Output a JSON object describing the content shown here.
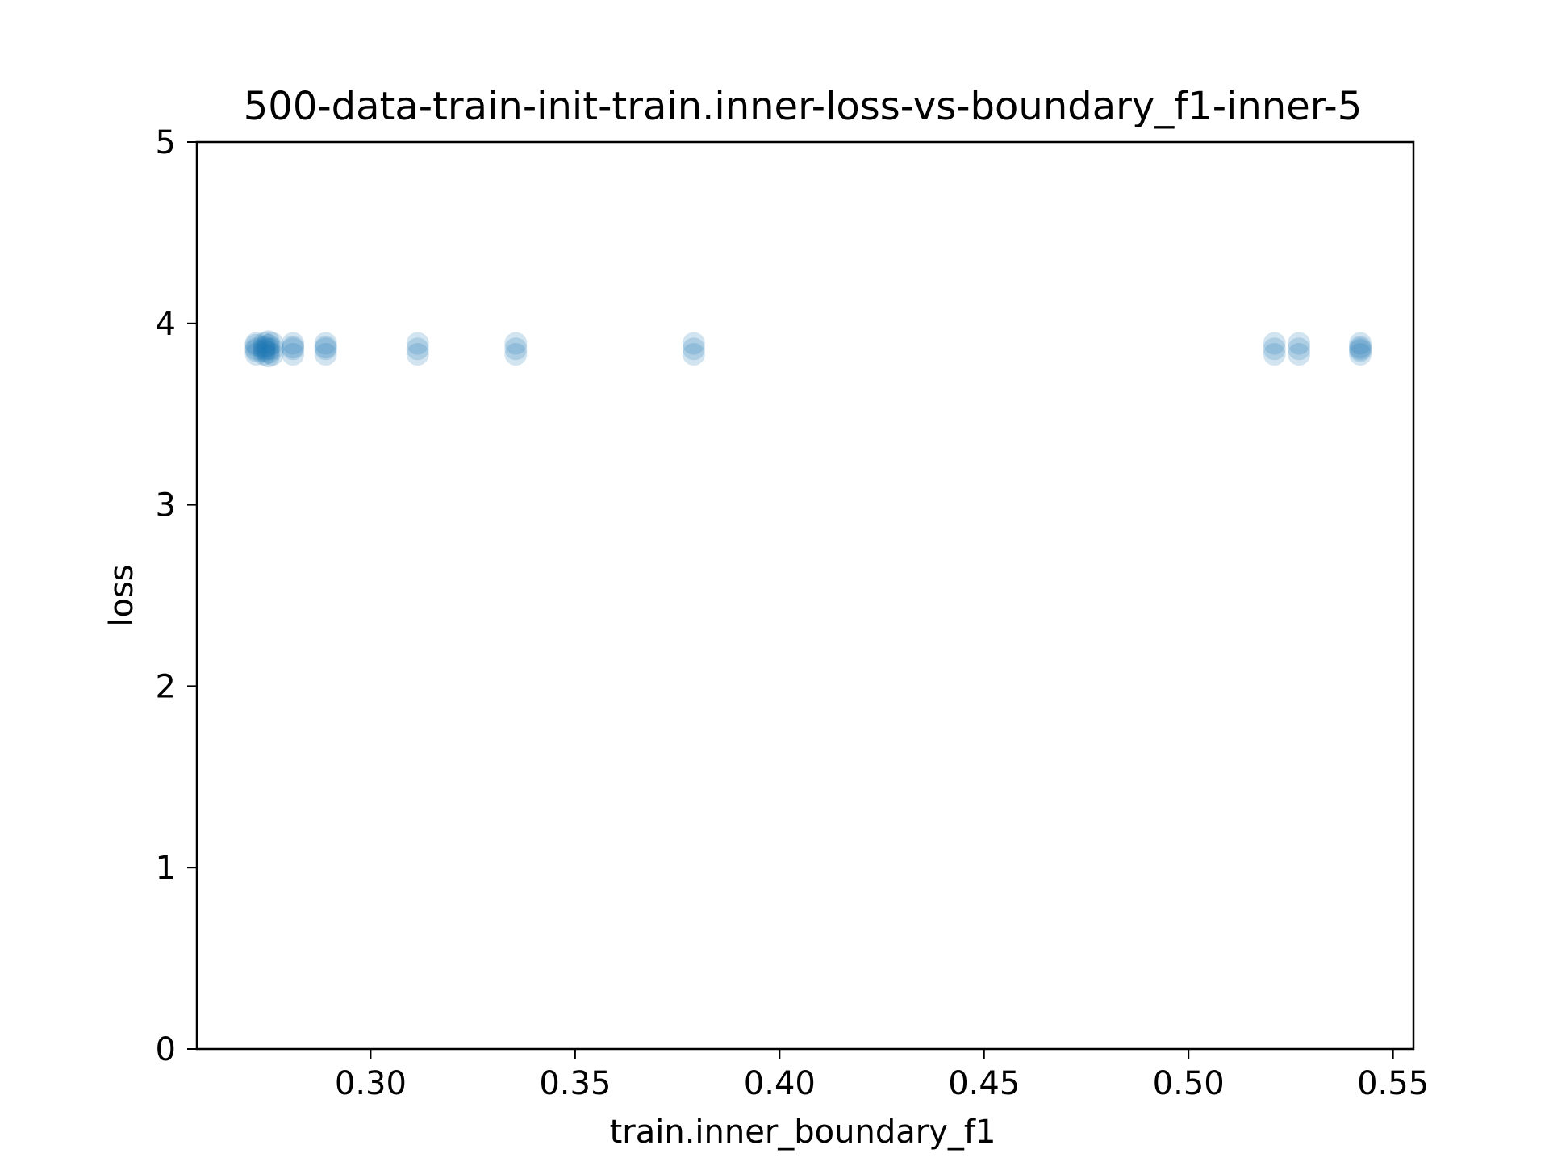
{
  "chart_data": {
    "type": "scatter",
    "title": "500-data-train-init-train.inner-loss-vs-boundary_f1-inner-5",
    "xlabel": "train.inner_boundary_f1",
    "ylabel": "loss",
    "xlim": [
      0.2575,
      0.555
    ],
    "ylim": [
      0,
      5
    ],
    "xticks": [
      0.3,
      0.35,
      0.4,
      0.45,
      0.5,
      0.55
    ],
    "xtick_labels": [
      "0.30",
      "0.35",
      "0.40",
      "0.45",
      "0.50",
      "0.55"
    ],
    "yticks": [
      0,
      1,
      2,
      3,
      4,
      5
    ],
    "ytick_labels": [
      "0",
      "1",
      "2",
      "3",
      "4",
      "5"
    ],
    "grid": false,
    "point_color": "#1f77b4",
    "point_alpha": 0.2,
    "series": [
      {
        "points": [
          {
            "x": 0.272,
            "y": 3.83
          },
          {
            "x": 0.272,
            "y": 3.86
          },
          {
            "x": 0.272,
            "y": 3.89
          },
          {
            "x": 0.272,
            "y": 3.85
          },
          {
            "x": 0.272,
            "y": 3.88
          },
          {
            "x": 0.274,
            "y": 3.83
          },
          {
            "x": 0.274,
            "y": 3.86
          },
          {
            "x": 0.274,
            "y": 3.89
          },
          {
            "x": 0.274,
            "y": 3.85
          },
          {
            "x": 0.274,
            "y": 3.87
          },
          {
            "x": 0.275,
            "y": 3.82
          },
          {
            "x": 0.275,
            "y": 3.84
          },
          {
            "x": 0.275,
            "y": 3.86
          },
          {
            "x": 0.275,
            "y": 3.88
          },
          {
            "x": 0.275,
            "y": 3.9
          },
          {
            "x": 0.276,
            "y": 3.83
          },
          {
            "x": 0.276,
            "y": 3.86
          },
          {
            "x": 0.276,
            "y": 3.89
          },
          {
            "x": 0.281,
            "y": 3.83
          },
          {
            "x": 0.281,
            "y": 3.86
          },
          {
            "x": 0.281,
            "y": 3.89
          },
          {
            "x": 0.281,
            "y": 3.87
          },
          {
            "x": 0.289,
            "y": 3.83
          },
          {
            "x": 0.289,
            "y": 3.86
          },
          {
            "x": 0.289,
            "y": 3.89
          },
          {
            "x": 0.289,
            "y": 3.87
          },
          {
            "x": 0.3115,
            "y": 3.83
          },
          {
            "x": 0.3115,
            "y": 3.86
          },
          {
            "x": 0.3115,
            "y": 3.89
          },
          {
            "x": 0.3355,
            "y": 3.83
          },
          {
            "x": 0.3355,
            "y": 3.86
          },
          {
            "x": 0.3355,
            "y": 3.89
          },
          {
            "x": 0.379,
            "y": 3.83
          },
          {
            "x": 0.379,
            "y": 3.86
          },
          {
            "x": 0.379,
            "y": 3.89
          },
          {
            "x": 0.521,
            "y": 3.83
          },
          {
            "x": 0.521,
            "y": 3.86
          },
          {
            "x": 0.521,
            "y": 3.89
          },
          {
            "x": 0.527,
            "y": 3.83
          },
          {
            "x": 0.527,
            "y": 3.86
          },
          {
            "x": 0.527,
            "y": 3.89
          },
          {
            "x": 0.542,
            "y": 3.83
          },
          {
            "x": 0.542,
            "y": 3.86
          },
          {
            "x": 0.542,
            "y": 3.89
          },
          {
            "x": 0.542,
            "y": 3.87
          },
          {
            "x": 0.542,
            "y": 3.85
          }
        ]
      }
    ]
  }
}
